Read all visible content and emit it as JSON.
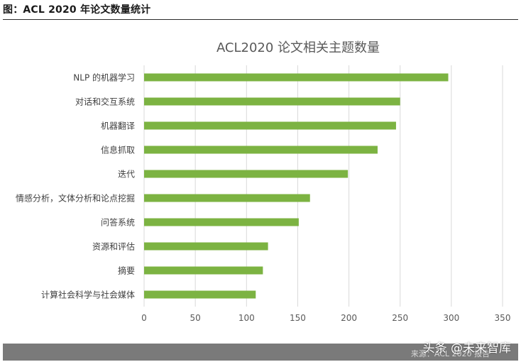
{
  "caption": "图：ACL 2020 年论文数量统计",
  "chart_data": {
    "type": "bar",
    "orientation": "horizontal",
    "title": "ACL2020 论文相关主题数量",
    "categories": [
      "NLP 的机器学习",
      "对话和交互系统",
      "机器翻译",
      "信息抓取",
      "迭代",
      "情感分析，文体分析和论点挖掘",
      "问答系统",
      "资源和评估",
      "摘要",
      "计算社会科学与社会媒体"
    ],
    "values": [
      297,
      250,
      246,
      228,
      199,
      162,
      151,
      121,
      116,
      109
    ],
    "xlim": [
      0,
      350
    ],
    "xticks": [
      0,
      50,
      100,
      150,
      200,
      250,
      300,
      350
    ],
    "grid": true,
    "bar_color": "#7cb342",
    "grid_color": "#d9d9d9"
  },
  "footer": {
    "source": "来源：ACL 2020 报告",
    "watermark": "头条 @未来智库"
  }
}
